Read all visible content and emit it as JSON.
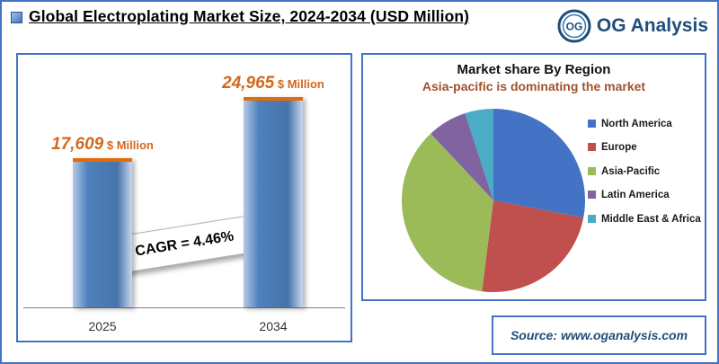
{
  "header": {
    "title": "Global Electroplating Market Size, 2024-2034 (USD Million)",
    "logo_monogram": "OG",
    "logo_text": "OG Analysis"
  },
  "chart_data": [
    {
      "type": "bar",
      "title": "Global Electroplating Market Size, 2024-2034 (USD Million)",
      "categories": [
        "2025",
        "2034"
      ],
      "values": [
        17609,
        24965
      ],
      "value_labels": [
        "17,609",
        "24,965"
      ],
      "unit_label": "$ Million",
      "annotation": "CAGR = 4.46%",
      "ylim": [
        0,
        25000
      ],
      "grid": false,
      "colors": {
        "bar": "#4f81bd",
        "cap": "#e36c0a",
        "value_label": "#d2691e"
      }
    },
    {
      "type": "pie",
      "title": "Market share By Region",
      "subtitle": "Asia-pacific is dominating the market",
      "legend_position": "right",
      "labels": [
        "North America",
        "Europe",
        "Asia-Pacific",
        "Latin America",
        "Middle East & Africa"
      ],
      "values": [
        28,
        24,
        36,
        7,
        5
      ],
      "colors": [
        "#4472c4",
        "#c0504d",
        "#9bbb59",
        "#8064a2",
        "#4bacc6"
      ]
    }
  ],
  "source": {
    "text": "Source: www.oganalysis.com"
  },
  "theme": {
    "accent_blue": "#4472c4",
    "dark_blue": "#1f4e79",
    "orange": "#d2691e",
    "brown": "#a0522d"
  }
}
